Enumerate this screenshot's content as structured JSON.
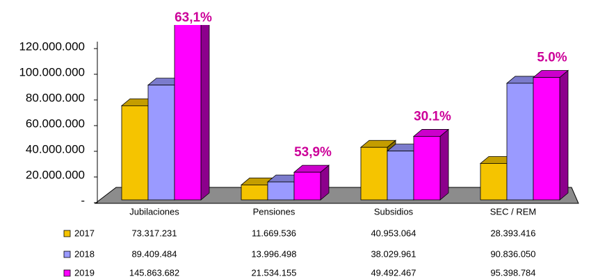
{
  "chart_data": {
    "type": "bar3d",
    "categories": [
      "Jubilaciones",
      "Pensiones",
      "Subsidios",
      "SEC / REM"
    ],
    "series": [
      {
        "name": "2017",
        "color": "#f5c400",
        "values": [
          73317231,
          11669536,
          40953064,
          28393416
        ],
        "value_labels": [
          "73.317.231",
          "11.669.536",
          "40.953.064",
          "28.393.416"
        ]
      },
      {
        "name": "2018",
        "color": "#9a9aff",
        "values": [
          89409484,
          13996498,
          38029961,
          90836050
        ],
        "value_labels": [
          "89.409.484",
          "13.996.498",
          "38.029.961",
          "90.836.050"
        ]
      },
      {
        "name": "2019",
        "color": "#ff00ff",
        "values": [
          145863682,
          21534155,
          49492467,
          95398784
        ],
        "value_labels": [
          "145.863.682",
          "21.534.155",
          "49.492.467",
          "95.398.784"
        ]
      }
    ],
    "annotations": [
      "63,1%",
      "53,9%",
      "30.1%",
      "5.0%"
    ],
    "annotation_color": "#cc0099",
    "ylim": [
      0,
      120000000
    ],
    "yticks": [
      {
        "value": 0,
        "label": "-"
      },
      {
        "value": 20000000,
        "label": "20.000.000"
      },
      {
        "value": 40000000,
        "label": "40.000.000"
      },
      {
        "value": 60000000,
        "label": "60.000.000"
      },
      {
        "value": 80000000,
        "label": "80.000.000"
      },
      {
        "value": 100000000,
        "label": "100.000.000"
      },
      {
        "value": 120000000,
        "label": "120.000.000"
      }
    ]
  }
}
